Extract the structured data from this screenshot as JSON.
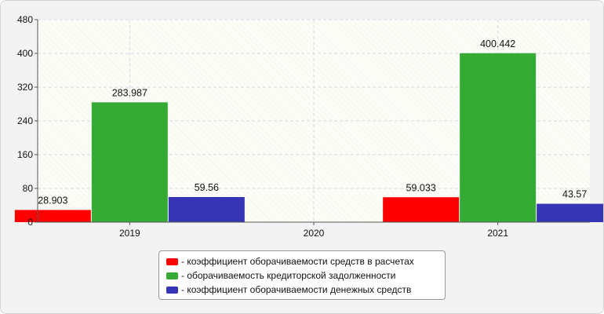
{
  "chart_data": {
    "type": "bar",
    "categories": [
      "2019",
      "2020",
      "2021"
    ],
    "series": [
      {
        "name": "- коэффициент оборачиваемости средств в расчетах",
        "color": "#ff0000",
        "values": [
          28.903,
          null,
          59.033
        ],
        "labels": [
          "28.903",
          "",
          "59.033"
        ]
      },
      {
        "name": "- оборачиваемость кредиторской задолженности",
        "color": "#35aa35",
        "values": [
          283.987,
          null,
          400.442
        ],
        "labels": [
          "283.987",
          "",
          "400.442"
        ]
      },
      {
        "name": "- коэффициент оборачиваемости денежных средств",
        "color": "#3535b5",
        "values": [
          59.56,
          null,
          43.57
        ],
        "labels": [
          "59.56",
          "",
          "43.57"
        ]
      }
    ],
    "ylim": [
      0,
      480
    ],
    "yticks": [
      0,
      80,
      160,
      240,
      320,
      400,
      480
    ],
    "title": "",
    "xlabel": "",
    "ylabel": "",
    "grid": true,
    "legend_position": "bottom"
  }
}
